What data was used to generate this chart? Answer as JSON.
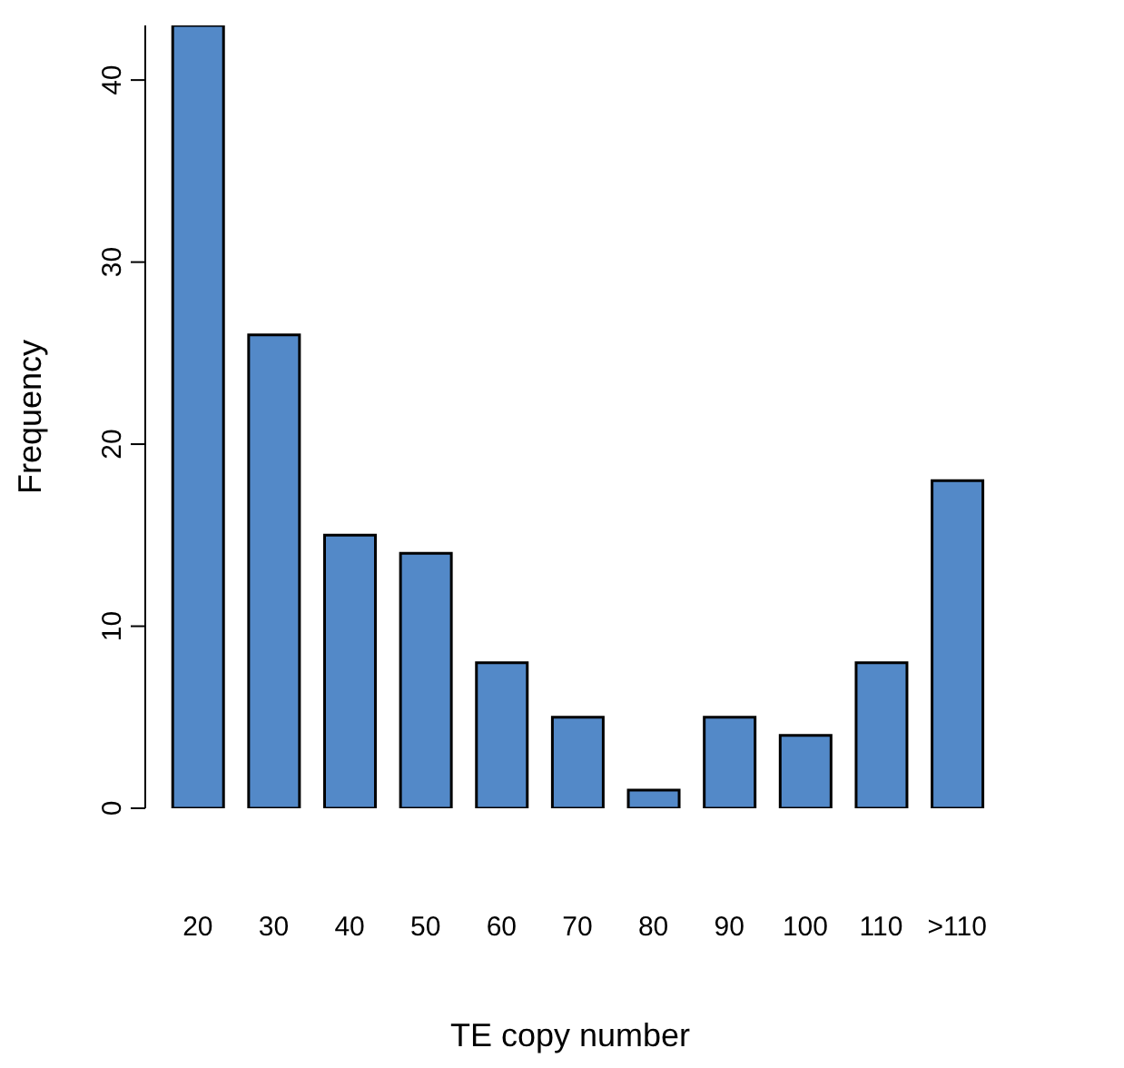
{
  "chart_data": {
    "type": "bar",
    "xlabel": "TE copy number",
    "ylabel": "Frequency",
    "categories": [
      "20",
      "30",
      "40",
      "50",
      "60",
      "70",
      "80",
      "90",
      "100",
      "110",
      ">110"
    ],
    "values": [
      43,
      26,
      15,
      14,
      8,
      5,
      1,
      5,
      4,
      8,
      18
    ],
    "color": "#5389c8",
    "ylim": [
      0,
      43
    ],
    "yticks": [
      0,
      10,
      20,
      30,
      40
    ],
    "grid": false,
    "legend": false
  }
}
